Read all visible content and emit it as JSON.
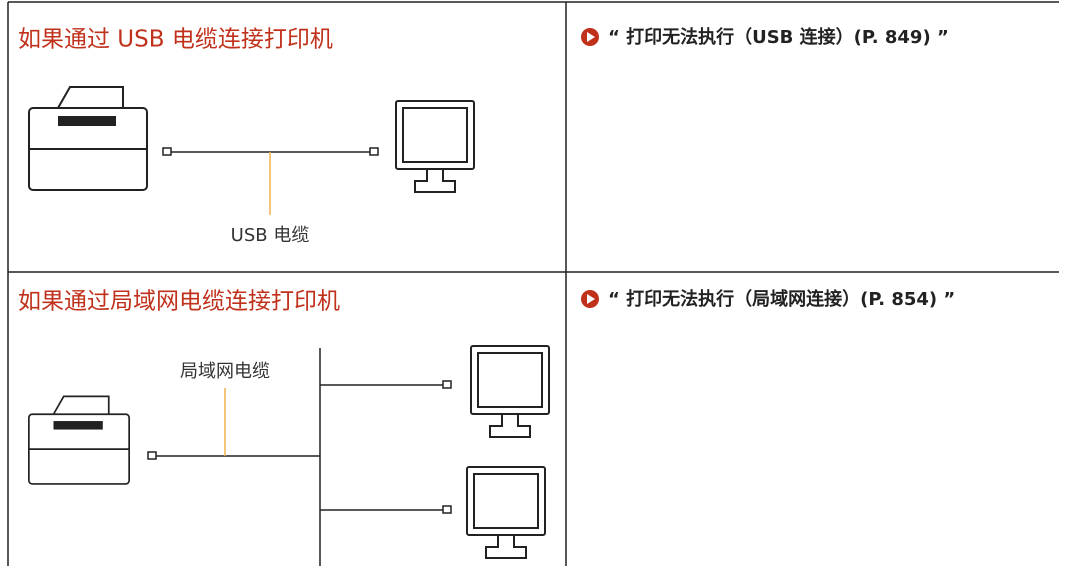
{
  "table": {
    "rows": [
      {
        "title": "如果通过 USB 电缆连接打印机",
        "cable_label": "USB 电缆",
        "link": "“ 打印无法执行（USB 连接）(P. 849) ”"
      },
      {
        "title": "如果通过局域网电缆连接打印机",
        "cable_label": "局域网电缆",
        "link": "“ 打印无法执行（局域网连接）(P. 854) ”"
      }
    ]
  }
}
